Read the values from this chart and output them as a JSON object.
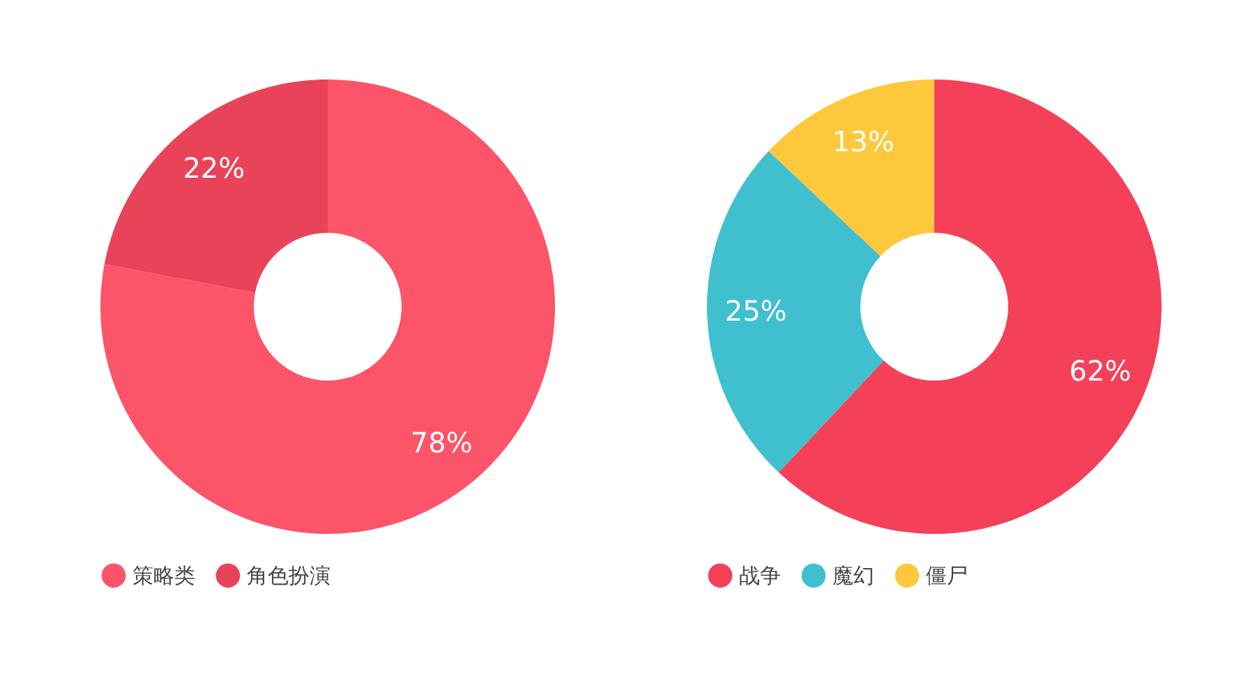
{
  "chart_data": [
    {
      "type": "donut",
      "categories": [
        "策略类",
        "角色扮演"
      ],
      "values": [
        78,
        22
      ],
      "colors": [
        "#fc5468",
        "#e84358"
      ],
      "value_labels": [
        "78%",
        "22%"
      ],
      "legend": "bottom"
    },
    {
      "type": "donut",
      "categories": [
        "战争",
        "魔幻",
        "僵尸"
      ],
      "values": [
        62,
        25,
        13
      ],
      "colors": [
        "#f5405a",
        "#40bfcf",
        "#fdc83b"
      ],
      "value_labels": [
        "62%",
        "25%",
        "13%"
      ],
      "legend": "bottom"
    }
  ]
}
